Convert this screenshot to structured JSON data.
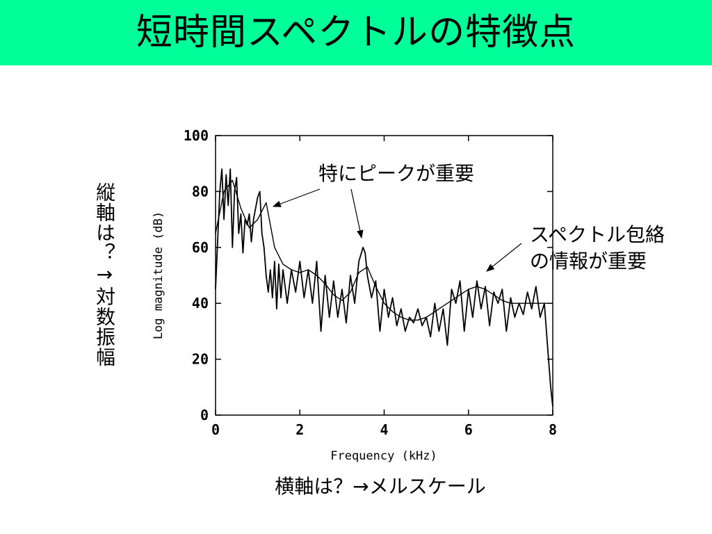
{
  "slide": {
    "title": "短時間スペクトルの特徴点",
    "vertical_label": "縦軸は？→対数振幅",
    "horizontal_label": "横軸は？→メルスケール",
    "annotation_peaks": "特にピークが重要",
    "annotation_envelope_line1": "スペクトル包絡",
    "annotation_envelope_line2": "の情報が重要",
    "colors": {
      "title_bar": "#00ff99",
      "plot_line": "#000000"
    }
  },
  "chart_data": {
    "type": "line",
    "xlabel": "Frequency (kHz)",
    "ylabel": "Log magnitude (dB)",
    "xlim": [
      0,
      8
    ],
    "ylim": [
      0,
      100
    ],
    "x_ticks": [
      0,
      2,
      4,
      6,
      8
    ],
    "y_ticks": [
      0,
      20,
      40,
      60,
      80,
      100
    ],
    "grid": false,
    "series": [
      {
        "values_x": [
          0,
          0.1,
          0.15,
          0.2,
          0.25,
          0.3,
          0.35,
          0.4,
          0.45,
          0.5,
          0.55,
          0.6,
          0.65,
          0.7,
          0.75,
          0.8,
          0.85,
          0.9,
          0.95,
          1.0,
          1.05,
          1.1,
          1.15,
          1.2,
          1.25,
          1.3,
          1.35,
          1.4,
          1.45,
          1.5,
          1.55,
          1.6,
          1.7,
          1.8,
          1.9,
          2.0,
          2.1,
          2.2,
          2.3,
          2.4,
          2.5,
          2.6,
          2.7,
          2.8,
          2.9,
          3.0,
          3.1,
          3.2,
          3.3,
          3.4,
          3.5,
          3.55,
          3.6,
          3.7,
          3.8,
          3.9,
          4.0,
          4.1,
          4.2,
          4.3,
          4.4,
          4.5,
          4.6,
          4.7,
          4.8,
          4.9,
          5.0,
          5.1,
          5.2,
          5.3,
          5.4,
          5.5,
          5.6,
          5.7,
          5.8,
          5.9,
          6.0,
          6.1,
          6.2,
          6.3,
          6.4,
          6.5,
          6.6,
          6.7,
          6.8,
          6.9,
          7.0,
          7.1,
          7.2,
          7.3,
          7.4,
          7.5,
          7.6,
          7.7,
          7.8,
          7.85,
          7.9,
          7.95,
          8.0
        ],
        "values_y": [
          45,
          80,
          88,
          70,
          86,
          75,
          88,
          60,
          80,
          85,
          65,
          72,
          58,
          70,
          68,
          72,
          62,
          70,
          74,
          78,
          80,
          65,
          60,
          50,
          44,
          52,
          42,
          55,
          38,
          54,
          42,
          52,
          40,
          52,
          44,
          55,
          42,
          52,
          40,
          55,
          30,
          50,
          35,
          48,
          35,
          45,
          33,
          50,
          40,
          55,
          60,
          58,
          50,
          42,
          48,
          30,
          45,
          35,
          42,
          32,
          38,
          30,
          35,
          33,
          38,
          32,
          35,
          28,
          40,
          30,
          38,
          25,
          45,
          40,
          48,
          30,
          45,
          35,
          48,
          38,
          46,
          32,
          44,
          40,
          45,
          30,
          42,
          35,
          40,
          36,
          44,
          38,
          46,
          35,
          40,
          30,
          20,
          10,
          3
        ],
        "name": ""
      },
      {
        "values_x": [
          0,
          0.2,
          0.4,
          0.6,
          0.8,
          1.0,
          1.2,
          1.4,
          1.6,
          1.8,
          2.0,
          2.2,
          2.4,
          2.6,
          2.8,
          3.0,
          3.2,
          3.4,
          3.6,
          3.8,
          4.0,
          4.2,
          4.4,
          4.6,
          4.8,
          5.0,
          5.2,
          5.4,
          5.6,
          5.8,
          6.0,
          6.2,
          6.4,
          6.6,
          6.8,
          7.0,
          7.2,
          7.4,
          7.6,
          7.8,
          8.0
        ],
        "values_y": [
          65,
          80,
          84,
          74,
          67,
          70,
          76,
          60,
          54,
          52,
          51,
          52,
          50,
          47,
          43,
          41,
          44,
          51,
          53,
          46,
          40,
          37,
          35,
          34,
          34,
          35,
          37,
          39,
          41,
          43,
          45,
          46,
          45,
          43,
          41,
          40,
          40,
          40,
          40,
          40,
          40
        ],
        "name": ""
      }
    ]
  }
}
